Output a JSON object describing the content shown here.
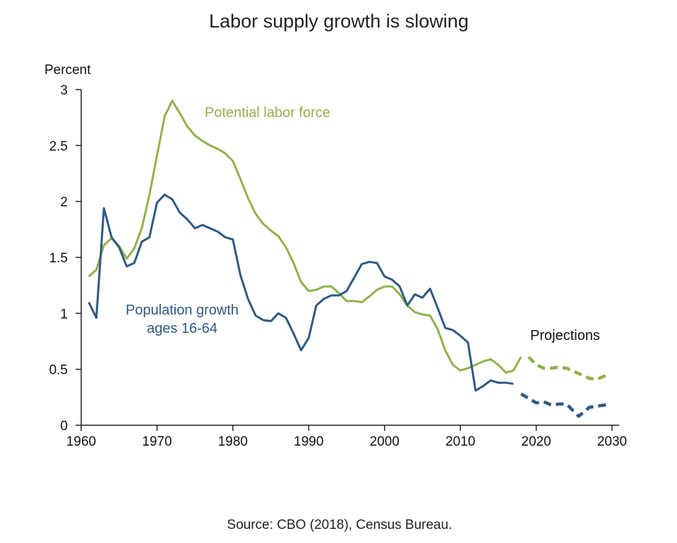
{
  "chart_data": {
    "type": "line",
    "title": "Labor supply growth is slowing",
    "ylabel": "Percent",
    "xlabel": "",
    "source": "Source: CBO (2018), Census Bureau.",
    "xlim": [
      1960,
      2030
    ],
    "ylim": [
      0,
      3
    ],
    "x_ticks": [
      1960,
      1970,
      1980,
      1990,
      2000,
      2010,
      2020,
      2030
    ],
    "y_ticks": [
      0,
      0.5,
      1,
      1.5,
      2,
      2.5,
      3
    ],
    "y_tick_labels": [
      "0",
      "0.5",
      "1",
      "1.5",
      "2",
      "2.5",
      "3"
    ],
    "grid": false,
    "annotations": {
      "projections": "Projections"
    },
    "series": [
      {
        "name": "Potential labor force",
        "color": "#93b04c",
        "actual": {
          "x": [
            1961,
            1962,
            1963,
            1964,
            1965,
            1966,
            1967,
            1968,
            1969,
            1970,
            1971,
            1972,
            1973,
            1974,
            1975,
            1976,
            1977,
            1978,
            1979,
            1980,
            1981,
            1982,
            1983,
            1984,
            1985,
            1986,
            1987,
            1988,
            1989,
            1990,
            1991,
            1992,
            1993,
            1994,
            1995,
            1996,
            1997,
            1998,
            1999,
            2000,
            2001,
            2002,
            2003,
            2004,
            2005,
            2006,
            2007,
            2008,
            2009,
            2010,
            2011,
            2012,
            2013,
            2014,
            2015,
            2016,
            2017,
            2018
          ],
          "y": [
            1.33,
            1.39,
            1.61,
            1.67,
            1.6,
            1.49,
            1.58,
            1.76,
            2.06,
            2.41,
            2.76,
            2.9,
            2.79,
            2.67,
            2.59,
            2.54,
            2.5,
            2.47,
            2.43,
            2.36,
            2.2,
            2.03,
            1.89,
            1.8,
            1.74,
            1.69,
            1.59,
            1.45,
            1.28,
            1.2,
            1.21,
            1.24,
            1.24,
            1.18,
            1.11,
            1.11,
            1.1,
            1.15,
            1.21,
            1.24,
            1.24,
            1.17,
            1.07,
            1.01,
            0.99,
            0.98,
            0.86,
            0.67,
            0.54,
            0.49,
            0.51,
            0.54,
            0.57,
            0.59,
            0.54,
            0.47,
            0.49,
            0.61
          ]
        },
        "projection": {
          "x": [
            2019,
            2020,
            2021,
            2022,
            2023,
            2024,
            2025,
            2026,
            2027,
            2028,
            2029,
            2029.6
          ],
          "y": [
            0.61,
            0.54,
            0.51,
            0.51,
            0.52,
            0.51,
            0.48,
            0.45,
            0.42,
            0.41,
            0.44,
            0.47
          ]
        }
      },
      {
        "name": "Population growth ages 16-64",
        "label_lines": [
          "Population growth",
          "ages 16-64"
        ],
        "color": "#2e5a82",
        "actual": {
          "x": [
            1961,
            1962,
            1963,
            1964,
            1965,
            1966,
            1967,
            1968,
            1969,
            1970,
            1971,
            1972,
            1973,
            1974,
            1975,
            1976,
            1977,
            1978,
            1979,
            1980,
            1981,
            1982,
            1983,
            1984,
            1985,
            1986,
            1987,
            1988,
            1989,
            1990,
            1991,
            1992,
            1993,
            1994,
            1995,
            1996,
            1997,
            1998,
            1999,
            2000,
            2001,
            2002,
            2003,
            2004,
            2005,
            2006,
            2007,
            2008,
            2009,
            2010,
            2011,
            2012,
            2013,
            2014,
            2015,
            2016,
            2017
          ],
          "y": [
            1.1,
            0.96,
            1.94,
            1.68,
            1.59,
            1.42,
            1.45,
            1.64,
            1.68,
            1.99,
            2.06,
            2.02,
            1.9,
            1.84,
            1.76,
            1.79,
            1.76,
            1.73,
            1.68,
            1.66,
            1.34,
            1.13,
            0.98,
            0.94,
            0.93,
            1.0,
            0.96,
            0.82,
            0.67,
            0.78,
            1.07,
            1.13,
            1.16,
            1.16,
            1.2,
            1.32,
            1.44,
            1.46,
            1.45,
            1.33,
            1.3,
            1.24,
            1.07,
            1.17,
            1.14,
            1.22,
            1.05,
            0.87,
            0.85,
            0.8,
            0.74,
            0.31,
            0.35,
            0.4,
            0.38,
            0.38,
            0.37
          ]
        },
        "projection": {
          "x": [
            2018,
            2019,
            2020,
            2021,
            2022,
            2023,
            2024,
            2025.6,
            2027,
            2028,
            2029,
            2029.6
          ],
          "y": [
            0.28,
            0.24,
            0.2,
            0.21,
            0.18,
            0.19,
            0.19,
            0.08,
            0.16,
            0.17,
            0.18,
            0.19
          ]
        }
      }
    ]
  }
}
